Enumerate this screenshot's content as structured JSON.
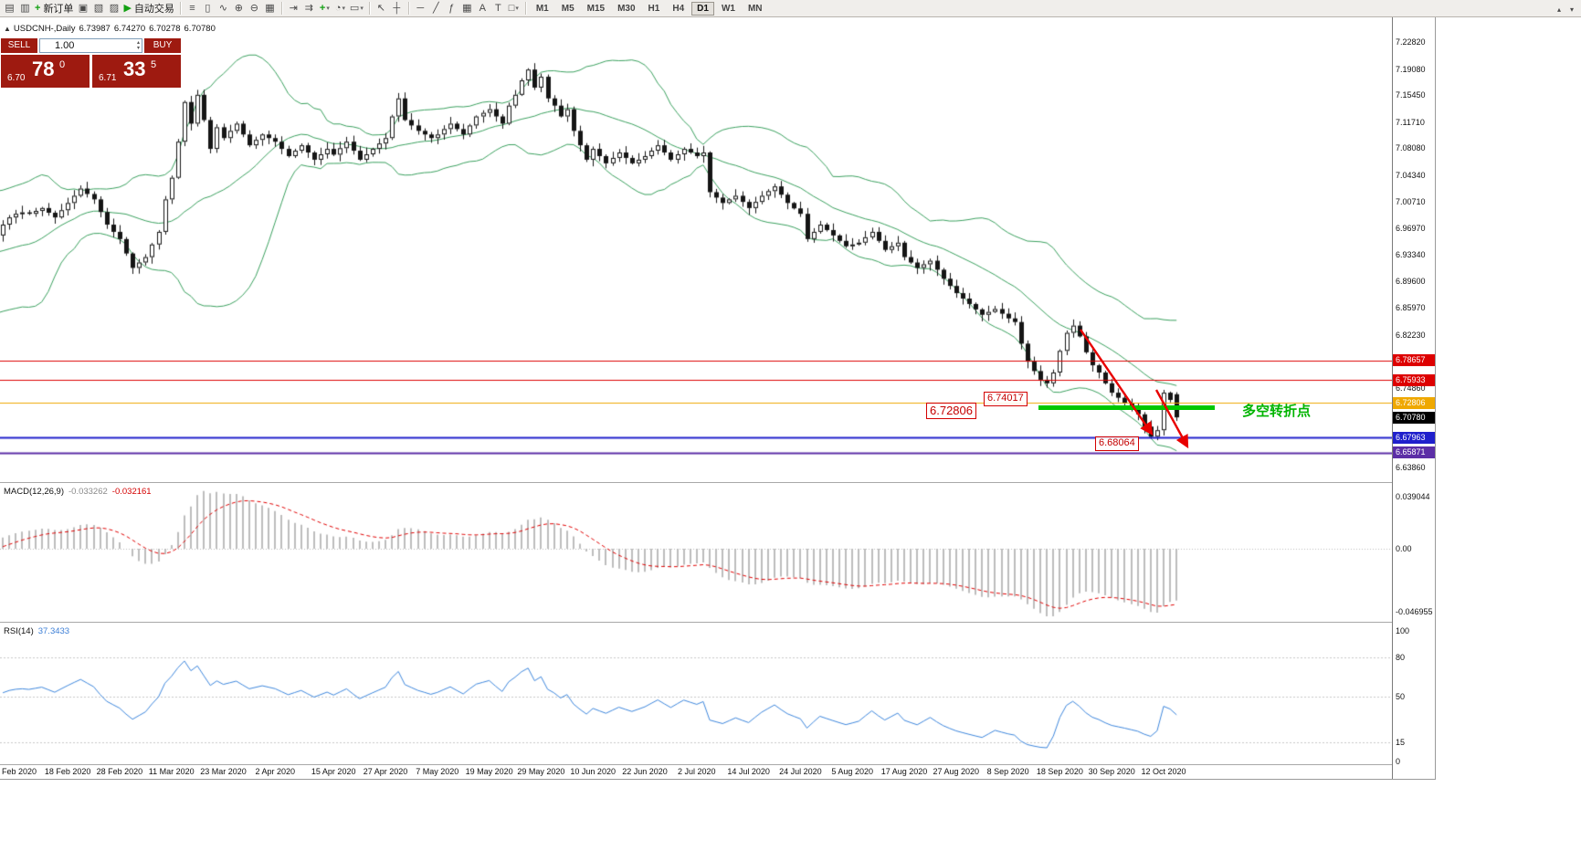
{
  "toolbar": {
    "items": [
      {
        "name": "new-chart-icon",
        "glyph": "▤"
      },
      {
        "name": "chart-profiles-icon",
        "glyph": "▥"
      },
      {
        "name": "new-order-button",
        "glyph": "+",
        "glyph_color": "#12a012",
        "label": "新订单"
      },
      {
        "name": "market-watch-icon",
        "glyph": "▣"
      },
      {
        "name": "data-window-icon",
        "glyph": "▧"
      },
      {
        "name": "navigator-icon",
        "glyph": "▨"
      },
      {
        "name": "autotrade-button",
        "glyph": "▶",
        "glyph_color": "#12a012",
        "label": "自动交易"
      },
      {
        "type": "sep"
      },
      {
        "name": "ohlc-bars-icon",
        "glyph": "≡"
      },
      {
        "name": "candlestick-chart-icon",
        "glyph": "▯"
      },
      {
        "name": "line-chart-icon",
        "glyph": "∿"
      },
      {
        "name": "zoom-in-icon",
        "glyph": "⊕"
      },
      {
        "name": "zoom-out-icon",
        "glyph": "⊖"
      },
      {
        "name": "tile-windows-icon",
        "glyph": "▦"
      },
      {
        "type": "sep"
      },
      {
        "name": "auto-scroll-icon",
        "glyph": "⇥"
      },
      {
        "name": "chart-shift-icon",
        "glyph": "⇉"
      },
      {
        "name": "indicators-button",
        "glyph": "+",
        "glyph_color": "#12a012",
        "dropdown": true
      },
      {
        "name": "periods-button",
        "glyph": "◔",
        "dropdown": true
      },
      {
        "name": "templates-button",
        "glyph": "▭",
        "dropdown": true
      },
      {
        "type": "sep"
      },
      {
        "name": "cursor-icon",
        "glyph": "↖"
      },
      {
        "name": "crosshair-icon",
        "glyph": "┼"
      },
      {
        "type": "sep"
      },
      {
        "name": "horizontal-line-icon",
        "glyph": "─"
      },
      {
        "name": "trendline-icon",
        "glyph": "╱"
      },
      {
        "name": "fibonacci-icon",
        "glyph": "ƒ"
      },
      {
        "name": "cycle-lines-icon",
        "glyph": "▦"
      },
      {
        "name": "text-icon",
        "glyph": "A"
      },
      {
        "name": "text-label-icon",
        "glyph": "T"
      },
      {
        "name": "shapes-icon",
        "glyph": "□",
        "dropdown": true
      },
      {
        "type": "sep"
      }
    ],
    "timeframes": [
      "M1",
      "M5",
      "M15",
      "M30",
      "H1",
      "H4",
      "D1",
      "W1",
      "MN"
    ],
    "active_timeframe": "D1",
    "right_items": [
      {
        "name": "toolbar-collapse-icon",
        "glyph": "▴"
      },
      {
        "name": "toolbar-more-icon",
        "glyph": "▾"
      }
    ]
  },
  "chart_header": {
    "collapse_icon": "▲",
    "title": "USDCNH-,Daily",
    "open": "6.73987",
    "high": "6.74270",
    "low": "6.70278",
    "close": "6.70780"
  },
  "one_click": {
    "sell_label": "SELL",
    "buy_label": "BUY",
    "volume": "1.00",
    "sell_price": {
      "base": "6.70",
      "pips": "78",
      "pipette": "0"
    },
    "buy_price": {
      "base": "6.71",
      "pips": "33",
      "pipette": "5"
    }
  },
  "icons": {
    "spin_up": "▴",
    "spin_down": "▾"
  },
  "price_axis": {
    "ticks": [
      {
        "label": "7.22820",
        "price": 7.2282
      },
      {
        "label": "7.19080",
        "price": 7.1908
      },
      {
        "label": "7.15450",
        "price": 7.1545
      },
      {
        "label": "7.11710",
        "price": 7.1171
      },
      {
        "label": "7.08080",
        "price": 7.0808
      },
      {
        "label": "7.04340",
        "price": 7.0434
      },
      {
        "label": "7.00710",
        "price": 7.0071
      },
      {
        "label": "6.96970",
        "price": 6.9697
      },
      {
        "label": "6.93340",
        "price": 6.9334
      },
      {
        "label": "6.89600",
        "price": 6.896
      },
      {
        "label": "6.85970",
        "price": 6.8597
      },
      {
        "label": "6.82230",
        "price": 6.8223
      },
      {
        "label": "6.74860",
        "price": 6.7486
      },
      {
        "label": "6.63860",
        "price": 6.6386
      }
    ],
    "badges": [
      {
        "label": "6.78657",
        "price": 6.78657,
        "color": "#dd0000"
      },
      {
        "label": "6.75933",
        "price": 6.75933,
        "color": "#dd0000"
      },
      {
        "label": "6.72806",
        "price": 6.72806,
        "color": "#efa800"
      },
      {
        "label": "6.70780",
        "price": 6.7078,
        "color": "#000000"
      },
      {
        "label": "6.67963",
        "price": 6.67963,
        "color": "#2020cc"
      },
      {
        "label": "6.65871",
        "price": 6.65871,
        "color": "#5c2ea6"
      }
    ]
  },
  "macd_panel": {
    "name": "MACD(12,26,9)",
    "value_main": "-0.033262",
    "value_signal": "-0.032161",
    "axis_labels": [
      {
        "label": "0.039044",
        "value": 0.039044
      },
      {
        "label": "0.00",
        "value": 0
      },
      {
        "label": "-0.046955",
        "value": -0.046955
      }
    ]
  },
  "rsi_panel": {
    "name": "RSI(14)",
    "value": "37.3433",
    "axis_labels": [
      {
        "label": "100",
        "value": 100
      },
      {
        "label": "80",
        "value": 80
      },
      {
        "label": "50",
        "value": 50
      },
      {
        "label": "15",
        "value": 15
      },
      {
        "label": "0",
        "value": 0
      }
    ],
    "levels": [
      80,
      50,
      15
    ]
  },
  "date_axis": [
    {
      "label": "Feb 2020",
      "i": -2,
      "align": "left"
    },
    {
      "label": "18 Feb 2020",
      "i": 6
    },
    {
      "label": "28 Feb 2020",
      "i": 14
    },
    {
      "label": "11 Mar 2020",
      "i": 22
    },
    {
      "label": "23 Mar 2020",
      "i": 30
    },
    {
      "label": "2 Apr 2020",
      "i": 38
    },
    {
      "label": "15 Apr 2020",
      "i": 47
    },
    {
      "label": "27 Apr 2020",
      "i": 55
    },
    {
      "label": "7 May 2020",
      "i": 63
    },
    {
      "label": "19 May 2020",
      "i": 71
    },
    {
      "label": "29 May 2020",
      "i": 79
    },
    {
      "label": "10 Jun 2020",
      "i": 87
    },
    {
      "label": "22 Jun 2020",
      "i": 95
    },
    {
      "label": "2 Jul 2020",
      "i": 103
    },
    {
      "label": "14 Jul 2020",
      "i": 111
    },
    {
      "label": "24 Jul 2020",
      "i": 119
    },
    {
      "label": "5 Aug 2020",
      "i": 127
    },
    {
      "label": "17 Aug 2020",
      "i": 135
    },
    {
      "label": "27 Aug 2020",
      "i": 143
    },
    {
      "label": "8 Sep 2020",
      "i": 151
    },
    {
      "label": "18 Sep 2020",
      "i": 159
    },
    {
      "label": "30 Sep 2020",
      "i": 167
    },
    {
      "label": "12 Oct 2020",
      "i": 175
    }
  ],
  "annotations": {
    "price_label_1": {
      "text": "6.74017"
    },
    "price_label_2": {
      "text": "6.72806"
    },
    "price_label_3": {
      "text": "6.68064"
    },
    "note": {
      "text": "多空转折点"
    },
    "colors": {
      "label": "#d40000",
      "support": "#00c800",
      "note": "#00b400",
      "arrow": "#e80000"
    }
  },
  "chart_data": {
    "type": "candlestick",
    "symbol": "USDCNH-",
    "timeframe": "Daily",
    "y_axis_visible_range": [
      6.618,
      7.25
    ],
    "last_candle": {
      "open": 6.73987,
      "high": 6.7427,
      "low": 6.70278,
      "close": 6.7078
    },
    "pre_closes": [
      6.96,
      6.93,
      6.9,
      6.87,
      6.86,
      6.88,
      6.91,
      6.93,
      6.92,
      6.95,
      6.97,
      6.99,
      7.0,
      6.985,
      6.97,
      6.96,
      6.975,
      6.985,
      6.99,
      6.992
    ],
    "closes": [
      6.99,
      6.994,
      6.998,
      6.9915,
      6.985,
      6.995,
      7.005,
      7.015,
      7.025,
      7.0175,
      7.01,
      6.9925,
      6.975,
      6.965,
      6.955,
      6.935,
      6.915,
      6.9225,
      6.93,
      6.9475,
      6.965,
      7.01,
      7.04,
      7.09,
      7.145,
      7.115,
      7.155,
      7.12,
      7.08,
      7.11,
      7.095,
      7.105,
      7.115,
      7.1,
      7.085,
      7.0925,
      7.1,
      7.095,
      7.09,
      7.08,
      7.07,
      7.0775,
      7.085,
      7.075,
      7.065,
      7.0725,
      7.08,
      7.072,
      7.081,
      7.09,
      7.0775,
      7.065,
      7.0725,
      7.08,
      7.0875,
      7.095,
      7.125,
      7.15,
      7.12,
      7.1125,
      7.105,
      7.1,
      7.095,
      7.1,
      7.1075,
      7.115,
      7.1075,
      7.1,
      7.1125,
      7.125,
      7.13,
      7.135,
      7.125,
      7.115,
      7.14,
      7.155,
      7.175,
      7.19,
      7.165,
      7.18,
      7.15,
      7.14,
      7.125,
      7.135,
      7.105,
      7.085,
      7.065,
      7.08,
      7.07,
      7.06,
      7.0675,
      7.075,
      7.0675,
      7.06,
      7.065,
      7.07,
      7.0775,
      7.085,
      7.075,
      7.065,
      7.0725,
      7.08,
      7.075,
      7.07,
      7.075,
      7.02,
      7.0125,
      7.005,
      7.01,
      7.015,
      7.0065,
      6.998,
      7.0065,
      7.015,
      7.0215,
      7.028,
      7.0165,
      7.005,
      6.9975,
      6.99,
      6.955,
      6.965,
      6.975,
      6.9675,
      6.96,
      6.9525,
      6.945,
      6.9475,
      6.95,
      6.9575,
      6.965,
      6.9525,
      6.94,
      6.945,
      6.95,
      6.93,
      6.9225,
      6.915,
      6.92,
      6.925,
      6.9125,
      6.9,
      6.89,
      6.88,
      6.8725,
      6.865,
      6.8575,
      6.85,
      6.854,
      6.858,
      6.8515,
      6.845,
      6.84,
      6.81,
      6.785,
      6.772,
      6.76,
      6.755,
      6.77,
      6.8,
      6.825,
      6.835,
      6.82,
      6.798,
      6.78,
      6.77,
      6.755,
      6.742,
      6.735,
      6.728,
      6.72,
      6.712,
      6.695,
      6.681,
      6.69,
      6.742,
      6.732,
      6.7078
    ],
    "indicators": {
      "bollinger": {
        "period": 20,
        "deviation": 2,
        "color": "#3aa05e"
      },
      "macd": {
        "fast": 12,
        "slow": 26,
        "signal": 9,
        "histogram_color": "#bdbdbd",
        "signal_color": "#e00000"
      },
      "rsi": {
        "period": 14,
        "color": "#3d86dc"
      }
    },
    "horizontal_lines": [
      {
        "price": 6.78657,
        "color": "#dd0000",
        "width": 1
      },
      {
        "price": 6.75933,
        "color": "#dd0000",
        "width": 1
      },
      {
        "price": 6.72806,
        "color": "#efa800",
        "width": 1
      },
      {
        "price": 6.67963,
        "color": "#2020cc",
        "width": 2
      },
      {
        "price": 6.65871,
        "color": "#5c2ea6",
        "width": 2
      }
    ]
  }
}
